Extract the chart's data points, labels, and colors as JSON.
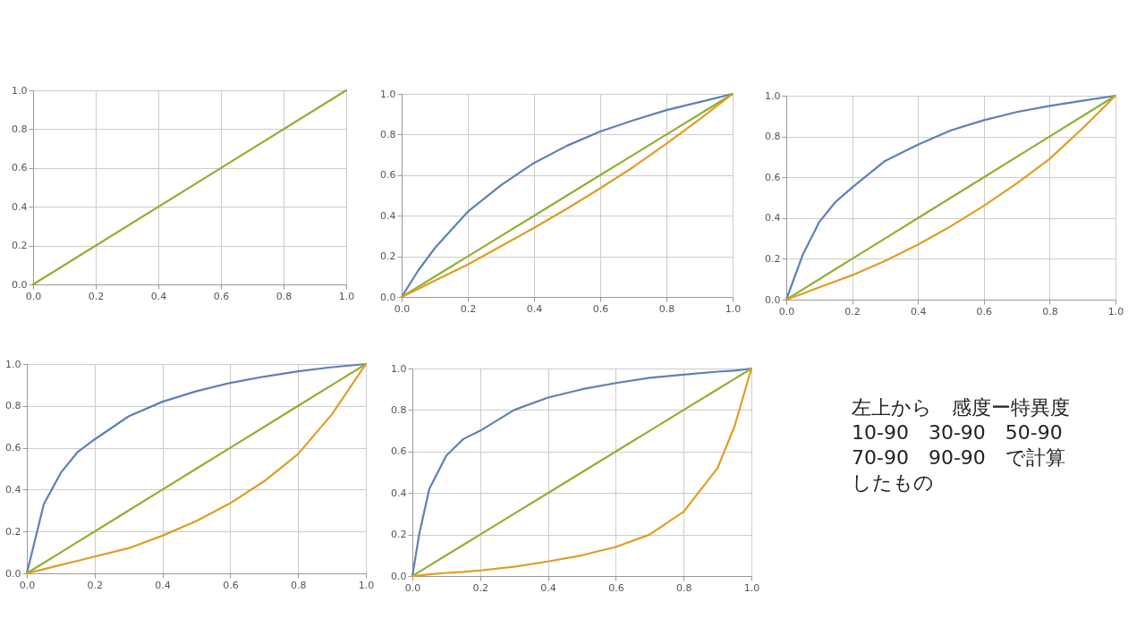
{
  "chart_data": [
    {
      "type": "line",
      "xlim": [
        0,
        1
      ],
      "ylim": [
        0,
        1
      ],
      "xticks": [
        {
          "value": 0,
          "label": "0.0"
        },
        {
          "value": 0.2,
          "label": "0.2"
        },
        {
          "value": 0.4,
          "label": "0.4"
        },
        {
          "value": 0.6,
          "label": "0.6"
        },
        {
          "value": 0.8,
          "label": "0.8"
        },
        {
          "value": 1,
          "label": "1.0"
        }
      ],
      "yticks": [
        {
          "value": 0,
          "label": "0.0"
        },
        {
          "value": 0.2,
          "label": "0.2"
        },
        {
          "value": 0.4,
          "label": "0.4"
        },
        {
          "value": 0.6,
          "label": "0.6"
        },
        {
          "value": 0.8,
          "label": "0.8"
        },
        {
          "value": 1,
          "label": "1.0"
        }
      ],
      "grid": true,
      "x": [
        0,
        1
      ],
      "series": [
        {
          "color": "#8fb032",
          "values": [
            0,
            1
          ]
        }
      ]
    },
    {
      "type": "line",
      "xlim": [
        0,
        1
      ],
      "ylim": [
        0,
        1
      ],
      "xticks": [
        {
          "value": 0,
          "label": "0.0"
        },
        {
          "value": 0.2,
          "label": "0.2"
        },
        {
          "value": 0.4,
          "label": "0.4"
        },
        {
          "value": 0.6,
          "label": "0.6"
        },
        {
          "value": 0.8,
          "label": "0.8"
        },
        {
          "value": 1,
          "label": "1.0"
        }
      ],
      "yticks": [
        {
          "value": 0,
          "label": "0.0"
        },
        {
          "value": 0.2,
          "label": "0.2"
        },
        {
          "value": 0.4,
          "label": "0.4"
        },
        {
          "value": 0.6,
          "label": "0.6"
        },
        {
          "value": 0.8,
          "label": "0.8"
        },
        {
          "value": 1,
          "label": "1.0"
        }
      ],
      "grid": true,
      "x": [
        0,
        0.05,
        0.1,
        0.15,
        0.2,
        0.3,
        0.4,
        0.5,
        0.6,
        0.7,
        0.8,
        0.9,
        1
      ],
      "series": [
        {
          "color": "#5e81b5",
          "values": [
            0,
            0.13,
            0.24,
            0.33,
            0.42,
            0.55,
            0.66,
            0.745,
            0.815,
            0.87,
            0.92,
            0.96,
            1
          ]
        },
        {
          "color": "#8fb032",
          "values": [
            0,
            0.05,
            0.1,
            0.15,
            0.2,
            0.3,
            0.4,
            0.5,
            0.6,
            0.7,
            0.8,
            0.9,
            1
          ]
        },
        {
          "color": "#e19c24",
          "values": [
            0,
            0.04,
            0.08,
            0.12,
            0.16,
            0.25,
            0.34,
            0.435,
            0.535,
            0.64,
            0.755,
            0.875,
            1
          ]
        }
      ]
    },
    {
      "type": "line",
      "xlim": [
        0,
        1
      ],
      "ylim": [
        0,
        1
      ],
      "xticks": [
        {
          "value": 0,
          "label": "0.0"
        },
        {
          "value": 0.2,
          "label": "0.2"
        },
        {
          "value": 0.4,
          "label": "0.4"
        },
        {
          "value": 0.6,
          "label": "0.6"
        },
        {
          "value": 0.8,
          "label": "0.8"
        },
        {
          "value": 1,
          "label": "1.0"
        }
      ],
      "yticks": [
        {
          "value": 0,
          "label": "0.0"
        },
        {
          "value": 0.2,
          "label": "0.2"
        },
        {
          "value": 0.4,
          "label": "0.4"
        },
        {
          "value": 0.6,
          "label": "0.6"
        },
        {
          "value": 0.8,
          "label": "0.8"
        },
        {
          "value": 1,
          "label": "1.0"
        }
      ],
      "grid": true,
      "x": [
        0,
        0.05,
        0.1,
        0.15,
        0.2,
        0.3,
        0.4,
        0.5,
        0.6,
        0.7,
        0.8,
        0.9,
        1
      ],
      "series": [
        {
          "color": "#5e81b5",
          "values": [
            0,
            0.22,
            0.38,
            0.48,
            0.55,
            0.68,
            0.76,
            0.83,
            0.88,
            0.92,
            0.95,
            0.975,
            1
          ]
        },
        {
          "color": "#8fb032",
          "values": [
            0,
            0.05,
            0.1,
            0.15,
            0.2,
            0.3,
            0.4,
            0.5,
            0.6,
            0.7,
            0.8,
            0.9,
            1
          ]
        },
        {
          "color": "#e19c24",
          "values": [
            0,
            0.03,
            0.06,
            0.09,
            0.12,
            0.19,
            0.27,
            0.36,
            0.46,
            0.57,
            0.69,
            0.84,
            1
          ]
        }
      ]
    },
    {
      "type": "line",
      "xlim": [
        0,
        1
      ],
      "ylim": [
        0,
        1
      ],
      "xticks": [
        {
          "value": 0,
          "label": "0.0"
        },
        {
          "value": 0.2,
          "label": "0.2"
        },
        {
          "value": 0.4,
          "label": "0.4"
        },
        {
          "value": 0.6,
          "label": "0.6"
        },
        {
          "value": 0.8,
          "label": "0.8"
        },
        {
          "value": 1,
          "label": "1.0"
        }
      ],
      "yticks": [
        {
          "value": 0,
          "label": "0.0"
        },
        {
          "value": 0.2,
          "label": "0.2"
        },
        {
          "value": 0.4,
          "label": "0.4"
        },
        {
          "value": 0.6,
          "label": "0.6"
        },
        {
          "value": 0.8,
          "label": "0.8"
        },
        {
          "value": 1,
          "label": "1.0"
        }
      ],
      "grid": true,
      "x": [
        0,
        0.05,
        0.1,
        0.15,
        0.2,
        0.3,
        0.4,
        0.5,
        0.6,
        0.7,
        0.8,
        0.9,
        1
      ],
      "series": [
        {
          "color": "#5e81b5",
          "values": [
            0,
            0.33,
            0.48,
            0.58,
            0.64,
            0.75,
            0.82,
            0.87,
            0.91,
            0.94,
            0.965,
            0.985,
            1
          ]
        },
        {
          "color": "#8fb032",
          "values": [
            0,
            0.05,
            0.1,
            0.15,
            0.2,
            0.3,
            0.4,
            0.5,
            0.6,
            0.7,
            0.8,
            0.9,
            1
          ]
        },
        {
          "color": "#e19c24",
          "values": [
            0,
            0.02,
            0.04,
            0.06,
            0.08,
            0.12,
            0.18,
            0.25,
            0.335,
            0.44,
            0.57,
            0.76,
            1
          ]
        }
      ]
    },
    {
      "type": "line",
      "xlim": [
        0,
        1
      ],
      "ylim": [
        0,
        1
      ],
      "xticks": [
        {
          "value": 0,
          "label": "0.0"
        },
        {
          "value": 0.2,
          "label": "0.2"
        },
        {
          "value": 0.4,
          "label": "0.4"
        },
        {
          "value": 0.6,
          "label": "0.6"
        },
        {
          "value": 0.8,
          "label": "0.8"
        },
        {
          "value": 1,
          "label": "1.0"
        }
      ],
      "yticks": [
        {
          "value": 0,
          "label": "0.0"
        },
        {
          "value": 0.2,
          "label": "0.2"
        },
        {
          "value": 0.4,
          "label": "0.4"
        },
        {
          "value": 0.6,
          "label": "0.6"
        },
        {
          "value": 0.8,
          "label": "0.8"
        },
        {
          "value": 1,
          "label": "1.0"
        }
      ],
      "grid": true,
      "x": [
        0,
        0.02,
        0.05,
        0.1,
        0.15,
        0.2,
        0.3,
        0.4,
        0.5,
        0.6,
        0.7,
        0.8,
        0.9,
        0.95,
        1
      ],
      "series": [
        {
          "color": "#5e81b5",
          "values": [
            0,
            0.2,
            0.42,
            0.58,
            0.66,
            0.7,
            0.8,
            0.86,
            0.9,
            0.93,
            0.955,
            0.97,
            0.985,
            0.99,
            1
          ]
        },
        {
          "color": "#8fb032",
          "values": [
            0,
            0.02,
            0.05,
            0.1,
            0.15,
            0.2,
            0.3,
            0.4,
            0.5,
            0.6,
            0.7,
            0.8,
            0.9,
            0.95,
            1
          ]
        },
        {
          "color": "#e19c24",
          "values": [
            0,
            0.003,
            0.008,
            0.015,
            0.02,
            0.027,
            0.045,
            0.07,
            0.1,
            0.14,
            0.2,
            0.31,
            0.52,
            0.72,
            1
          ]
        }
      ]
    },
    {
      "type": "other",
      "annotations": [
        "左上から　感度ー特異度 10-90　30-90　50-90 70-90　90-90　で計算したもの"
      ]
    }
  ]
}
